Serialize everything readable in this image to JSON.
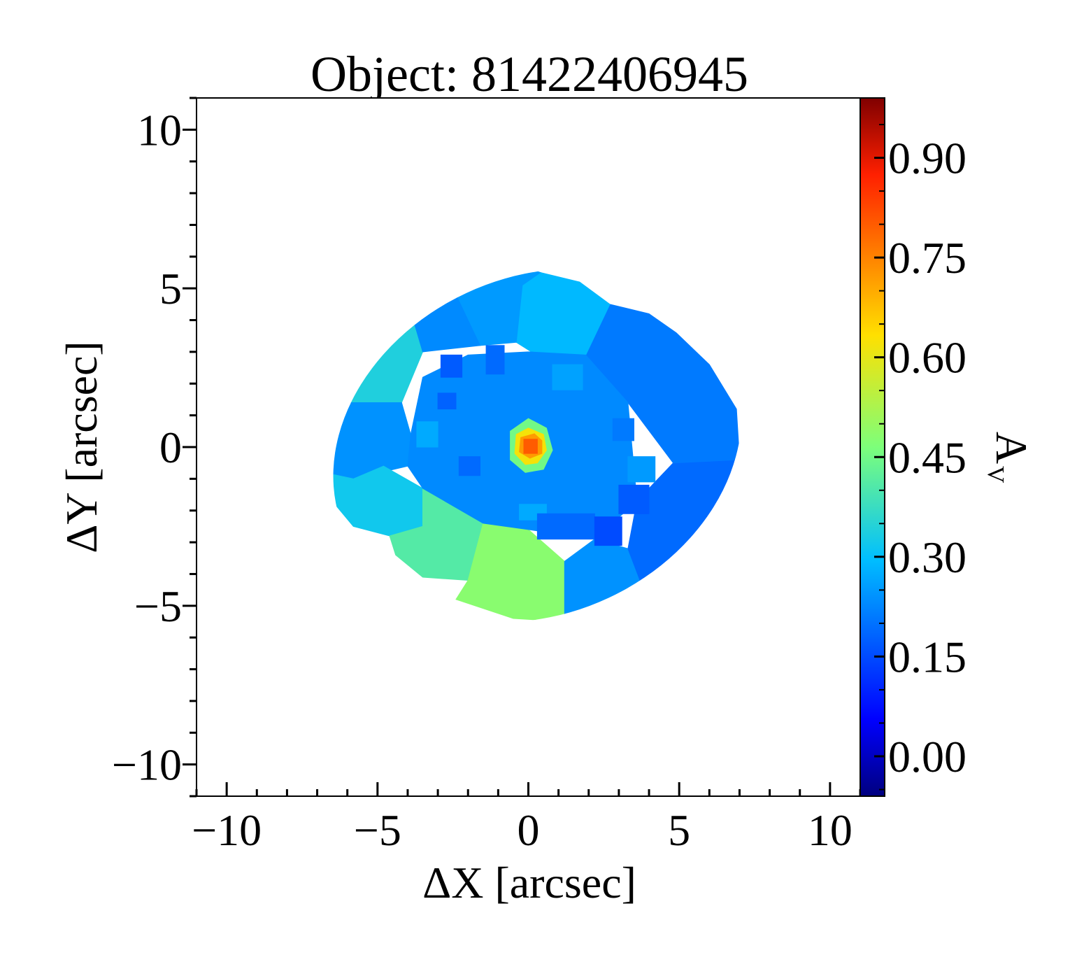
{
  "chart_data": {
    "type": "heatmap",
    "title": "Object: 81422406945",
    "xlabel": "ΔX [arcsec]",
    "ylabel": "ΔY [arcsec]",
    "xlim": [
      -11,
      11
    ],
    "ylim": [
      -11,
      11
    ],
    "xticks": [
      -10,
      -5,
      0,
      5,
      10
    ],
    "yticks": [
      -10,
      -5,
      0,
      5,
      10
    ],
    "xtick_labels": [
      "−10",
      "−5",
      "0",
      "5",
      "10"
    ],
    "ytick_labels": [
      "−10",
      "−5",
      "0",
      "5",
      "10"
    ],
    "colorbar": {
      "label": "A",
      "label_subscript": "V",
      "range": [
        -0.06,
        0.99
      ],
      "ticks": [
        0.0,
        0.15,
        0.3,
        0.45,
        0.6,
        0.75,
        0.9
      ],
      "tick_labels": [
        "0.00",
        "0.15",
        "0.30",
        "0.45",
        "0.60",
        "0.75",
        "0.90"
      ],
      "colormap": "jet"
    },
    "ellipse": {
      "center": [
        0.3,
        0.05
      ],
      "semi_major": 7.0,
      "semi_minor": 5.3,
      "angle_deg": -25
    },
    "bins": [
      {
        "region": "outer-left-upper",
        "value": 0.34,
        "polygon": [
          [
            -7,
            1.4
          ],
          [
            -7,
            3.0
          ],
          [
            -6.2,
            4.3
          ],
          [
            -5.0,
            4.9
          ],
          [
            -4.0,
            4.6
          ],
          [
            -3.5,
            3.0
          ],
          [
            -4.2,
            1.4
          ]
        ]
      },
      {
        "region": "outer-left-middle",
        "value": 0.24,
        "polygon": [
          [
            -7,
            1.4
          ],
          [
            -4.2,
            1.4
          ],
          [
            -3.9,
            0.4
          ],
          [
            -4.0,
            -0.6
          ],
          [
            -5.8,
            -1.0
          ],
          [
            -6.8,
            -0.8
          ],
          [
            -7.0,
            0
          ]
        ]
      },
      {
        "region": "outer-left-lower",
        "value": 0.32,
        "polygon": [
          [
            -6.8,
            -0.8
          ],
          [
            -5.8,
            -1.0
          ],
          [
            -4.8,
            -0.6
          ],
          [
            -3.5,
            -1.3
          ],
          [
            -3.5,
            -2.5
          ],
          [
            -4.6,
            -2.8
          ],
          [
            -5.8,
            -2.5
          ],
          [
            -6.5,
            -1.7
          ]
        ]
      },
      {
        "region": "outer-lower-left",
        "value": 0.41,
        "polygon": [
          [
            -4.6,
            -2.8
          ],
          [
            -3.5,
            -2.5
          ],
          [
            -3.5,
            -1.3
          ],
          [
            -2.2,
            -2.0
          ],
          [
            -1.5,
            -2.4
          ],
          [
            -2.0,
            -4.2
          ],
          [
            -3.5,
            -4.1
          ],
          [
            -4.4,
            -3.4
          ]
        ]
      },
      {
        "region": "outer-lower-center",
        "value": 0.48,
        "polygon": [
          [
            -2.0,
            -4.2
          ],
          [
            -1.5,
            -2.4
          ],
          [
            0.0,
            -2.6
          ],
          [
            1.2,
            -3.6
          ],
          [
            1.2,
            -5.5
          ],
          [
            -0.5,
            -5.4
          ],
          [
            -2.4,
            -4.8
          ]
        ]
      },
      {
        "region": "outer-lower-right",
        "value": 0.24,
        "polygon": [
          [
            1.2,
            -5.5
          ],
          [
            1.2,
            -3.6
          ],
          [
            2.2,
            -2.9
          ],
          [
            3.3,
            -3.2
          ],
          [
            3.7,
            -4.2
          ],
          [
            3.7,
            -5.4
          ],
          [
            2.6,
            -5.6
          ]
        ]
      },
      {
        "region": "outer-right-lower",
        "value": 0.19,
        "polygon": [
          [
            3.7,
            -5.4
          ],
          [
            3.7,
            -4.2
          ],
          [
            3.3,
            -3.2
          ],
          [
            3.6,
            -1.7
          ],
          [
            4.8,
            -0.5
          ],
          [
            7.0,
            -0.4
          ],
          [
            7.0,
            -2.6
          ],
          [
            6.2,
            -3.6
          ],
          [
            5.2,
            -4.6
          ]
        ]
      },
      {
        "region": "outer-right-upper",
        "value": 0.21,
        "polygon": [
          [
            4.8,
            -0.5
          ],
          [
            7.0,
            -0.4
          ],
          [
            6.9,
            1.2
          ],
          [
            6.0,
            2.6
          ],
          [
            4.9,
            3.6
          ],
          [
            4.0,
            4.2
          ],
          [
            2.7,
            4.5
          ],
          [
            1.9,
            2.9
          ],
          [
            3.3,
            1.4
          ]
        ]
      },
      {
        "region": "outer-upper-right",
        "value": 0.29,
        "polygon": [
          [
            1.9,
            2.9
          ],
          [
            2.7,
            4.5
          ],
          [
            1.7,
            5.2
          ],
          [
            0.4,
            5.5
          ],
          [
            -0.2,
            5.1
          ],
          [
            -0.4,
            3.3
          ],
          [
            0.6,
            2.7
          ]
        ]
      },
      {
        "region": "outer-upper-center",
        "value": 0.25,
        "polygon": [
          [
            -0.4,
            3.3
          ],
          [
            -0.2,
            5.1
          ],
          [
            0.4,
            5.5
          ],
          [
            -0.5,
            5.8
          ],
          [
            -2.1,
            5.8
          ],
          [
            -2.4,
            4.8
          ],
          [
            -1.6,
            3.2
          ]
        ]
      },
      {
        "region": "outer-upper-left",
        "value": 0.23,
        "polygon": [
          [
            -2.4,
            4.8
          ],
          [
            -2.1,
            5.8
          ],
          [
            -3.2,
            5.6
          ],
          [
            -4.0,
            5.0
          ],
          [
            -5.0,
            4.9
          ],
          [
            -4.0,
            4.6
          ],
          [
            -3.5,
            3.0
          ],
          [
            -1.6,
            3.2
          ]
        ]
      },
      {
        "region": "inner-disk",
        "value": 0.23,
        "polygon": [
          [
            -3.9,
            0.4
          ],
          [
            -3.5,
            2.2
          ],
          [
            -2.0,
            2.9
          ],
          [
            0.0,
            3.0
          ],
          [
            1.9,
            2.9
          ],
          [
            3.3,
            1.4
          ],
          [
            3.6,
            -1.7
          ],
          [
            2.2,
            -2.9
          ],
          [
            0.0,
            -2.6
          ],
          [
            -1.5,
            -2.4
          ],
          [
            -3.5,
            -1.3
          ],
          [
            -4.0,
            -0.6
          ]
        ]
      },
      {
        "region": "inner-patch",
        "value": 0.17,
        "polygon": [
          [
            -2.9,
            2.9
          ],
          [
            -2.2,
            2.9
          ],
          [
            -2.2,
            2.2
          ],
          [
            -2.9,
            2.2
          ]
        ]
      },
      {
        "region": "inner-patch",
        "value": 0.19,
        "polygon": [
          [
            -1.4,
            3.2
          ],
          [
            -0.8,
            3.2
          ],
          [
            -0.8,
            2.3
          ],
          [
            -1.4,
            2.3
          ]
        ]
      },
      {
        "region": "inner-patch",
        "value": 0.18,
        "polygon": [
          [
            -3.0,
            1.7
          ],
          [
            -2.4,
            1.7
          ],
          [
            -2.4,
            1.2
          ],
          [
            -3.0,
            1.2
          ]
        ]
      },
      {
        "region": "inner-patch",
        "value": 0.19,
        "polygon": [
          [
            -2.3,
            -0.3
          ],
          [
            -1.6,
            -0.3
          ],
          [
            -1.6,
            -0.9
          ],
          [
            -2.3,
            -0.9
          ]
        ]
      },
      {
        "region": "inner-patch",
        "value": 0.27,
        "polygon": [
          [
            -3.7,
            0.8
          ],
          [
            -3.0,
            0.8
          ],
          [
            -3.0,
            0.0
          ],
          [
            -3.7,
            0.0
          ]
        ]
      },
      {
        "region": "inner-patch",
        "value": 0.27,
        "polygon": [
          [
            -0.3,
            -1.8
          ],
          [
            0.6,
            -1.8
          ],
          [
            0.6,
            -2.3
          ],
          [
            -0.3,
            -2.3
          ]
        ]
      },
      {
        "region": "inner-patch",
        "value": 0.19,
        "polygon": [
          [
            0.3,
            -2.1
          ],
          [
            2.2,
            -2.1
          ],
          [
            2.2,
            -2.9
          ],
          [
            0.3,
            -2.9
          ]
        ]
      },
      {
        "region": "inner-patch",
        "value": 0.15,
        "polygon": [
          [
            2.2,
            -2.2
          ],
          [
            3.1,
            -2.2
          ],
          [
            3.1,
            -3.1
          ],
          [
            2.2,
            -3.1
          ]
        ]
      },
      {
        "region": "inner-patch",
        "value": 0.17,
        "polygon": [
          [
            3.0,
            -1.2
          ],
          [
            4.0,
            -1.2
          ],
          [
            4.0,
            -2.1
          ],
          [
            3.0,
            -2.1
          ]
        ]
      },
      {
        "region": "inner-patch",
        "value": 0.26,
        "polygon": [
          [
            0.8,
            2.6
          ],
          [
            1.8,
            2.6
          ],
          [
            1.8,
            1.8
          ],
          [
            0.8,
            1.8
          ]
        ]
      },
      {
        "region": "inner-patch",
        "value": 0.25,
        "polygon": [
          [
            3.3,
            -0.3
          ],
          [
            4.2,
            -0.3
          ],
          [
            4.2,
            -1.1
          ],
          [
            3.3,
            -1.1
          ]
        ]
      },
      {
        "region": "inner-patch",
        "value": 0.21,
        "polygon": [
          [
            2.8,
            0.9
          ],
          [
            3.5,
            0.9
          ],
          [
            3.5,
            0.2
          ],
          [
            2.8,
            0.2
          ]
        ]
      },
      {
        "region": "core",
        "value": 0.45,
        "polygon": [
          [
            -0.6,
            0.5
          ],
          [
            0.0,
            0.9
          ],
          [
            0.6,
            0.6
          ],
          [
            0.8,
            -0.1
          ],
          [
            0.5,
            -0.7
          ],
          [
            -0.1,
            -0.8
          ],
          [
            -0.6,
            -0.4
          ]
        ]
      },
      {
        "region": "core",
        "value": 0.62,
        "polygon": [
          [
            -0.4,
            0.4
          ],
          [
            0.0,
            0.6
          ],
          [
            0.5,
            0.4
          ],
          [
            0.6,
            -0.1
          ],
          [
            0.3,
            -0.5
          ],
          [
            -0.1,
            -0.55
          ],
          [
            -0.45,
            -0.2
          ]
        ]
      },
      {
        "region": "core",
        "value": 0.72,
        "polygon": [
          [
            -0.25,
            0.3
          ],
          [
            0.2,
            0.42
          ],
          [
            0.45,
            0.2
          ],
          [
            0.45,
            -0.2
          ],
          [
            0.05,
            -0.35
          ],
          [
            -0.3,
            -0.15
          ]
        ]
      },
      {
        "region": "core",
        "value": 0.8,
        "polygon": [
          [
            -0.15,
            0.25
          ],
          [
            0.3,
            0.25
          ],
          [
            0.3,
            -0.2
          ],
          [
            -0.15,
            -0.2
          ]
        ]
      }
    ]
  }
}
